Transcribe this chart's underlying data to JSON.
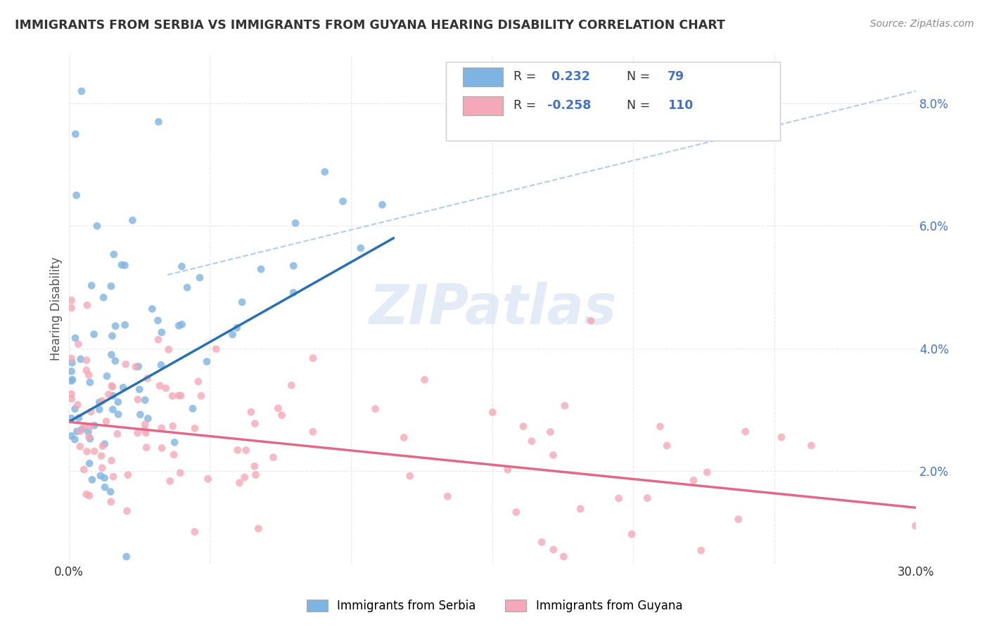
{
  "title": "IMMIGRANTS FROM SERBIA VS IMMIGRANTS FROM GUYANA HEARING DISABILITY CORRELATION CHART",
  "source": "Source: ZipAtlas.com",
  "ylabel": "Hearing Disability",
  "ylim": [
    0.005,
    0.088
  ],
  "xlim": [
    0.0,
    0.3
  ],
  "yticks": [
    0.02,
    0.04,
    0.06,
    0.08
  ],
  "ytick_labels": [
    "2.0%",
    "4.0%",
    "6.0%",
    "8.0%"
  ],
  "xticks": [
    0.0,
    0.05,
    0.1,
    0.15,
    0.2,
    0.25,
    0.3
  ],
  "xtick_labels": [
    "0.0%",
    "",
    "",
    "",
    "",
    "",
    "30.0%"
  ],
  "serbia_R": 0.232,
  "serbia_N": 79,
  "guyana_R": -0.258,
  "guyana_N": 110,
  "serbia_color": "#7eb4e2",
  "guyana_color": "#f4a8b8",
  "serbia_line_color": "#2870b0",
  "guyana_line_color": "#e06888",
  "ref_line_color": "#a8c8e8",
  "background_color": "#ffffff",
  "grid_color": "#e8e8e8",
  "bottom_legend_serbia": "Immigrants from Serbia",
  "bottom_legend_guyana": "Immigrants from Guyana",
  "serbia_line_x": [
    0.0,
    0.115
  ],
  "serbia_line_y": [
    0.028,
    0.058
  ],
  "guyana_line_x": [
    0.0,
    0.3
  ],
  "guyana_line_y": [
    0.028,
    0.014
  ],
  "ref_line_x": [
    0.035,
    0.3
  ],
  "ref_line_y": [
    0.052,
    0.082
  ]
}
